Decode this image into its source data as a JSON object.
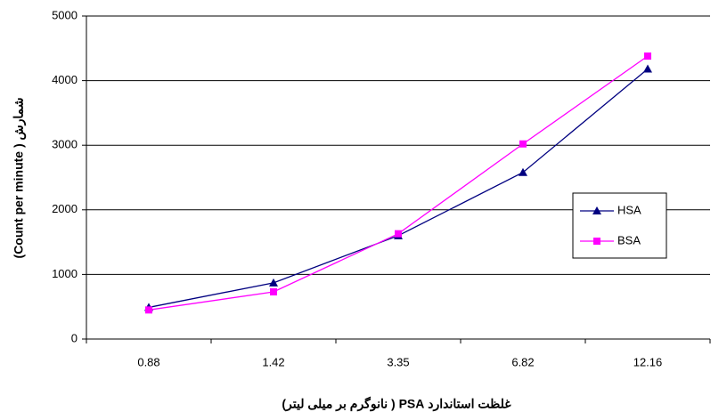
{
  "chart_data": {
    "type": "line",
    "x_label": "غلظت استاندارد PSA ( نانوگرم بر میلی لیتر)",
    "y_label": "(Count per minute ) شمارش",
    "categories": [
      "0.88",
      "1.42",
      "3.35",
      "6.82",
      "12.16"
    ],
    "series": [
      {
        "name": "HSA",
        "color": "#000080",
        "marker": "triangle",
        "values": [
          490,
          870,
          1600,
          2580,
          4180
        ]
      },
      {
        "name": "BSA",
        "color": "#ff00ff",
        "marker": "square",
        "values": [
          450,
          730,
          1630,
          3020,
          4380
        ]
      }
    ],
    "ylim": [
      0,
      5000
    ],
    "yticks": [
      0,
      1000,
      2000,
      3000,
      4000,
      5000
    ],
    "grid": true
  }
}
